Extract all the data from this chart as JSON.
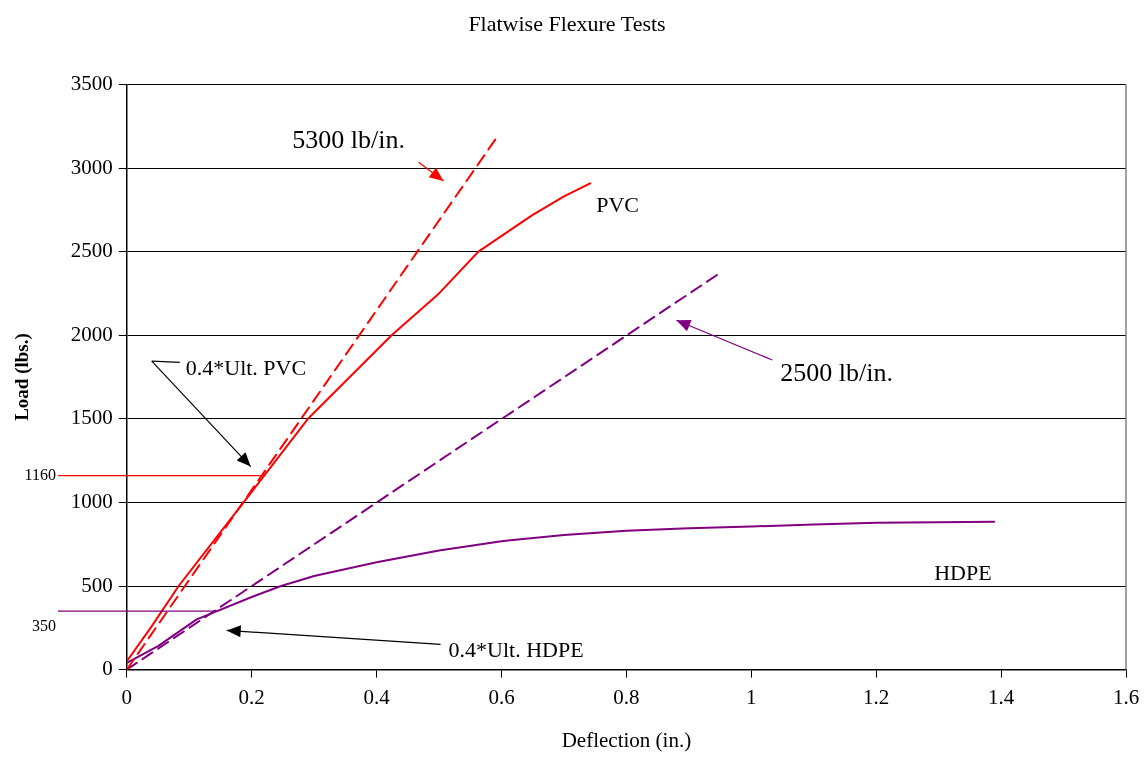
{
  "chart_data": {
    "type": "line",
    "title": "Flatwise Flexure Tests",
    "xlabel": "Deflection (in.)",
    "ylabel": "Load (lbs.)",
    "xlim": [
      0,
      1.6
    ],
    "xticks": [
      0,
      0.2,
      0.4,
      0.6,
      0.8,
      1,
      1.2,
      1.4,
      1.6
    ],
    "ylim": [
      0,
      3500
    ],
    "yticks": [
      0,
      500,
      1000,
      1500,
      2000,
      2500,
      3000,
      3500
    ],
    "grid": "y",
    "legend": false,
    "marker": "none",
    "series": [
      {
        "name": "PVC",
        "color": "#ff0000",
        "line_style": "solid",
        "x": [
          0,
          0.04,
          0.083,
          0.187,
          0.29,
          0.424,
          0.5,
          0.563,
          0.65,
          0.7,
          0.742
        ],
        "values": [
          50,
          260,
          500,
          1000,
          1500,
          2000,
          2250,
          2500,
          2720,
          2830,
          2908
        ]
      },
      {
        "color": "#ff0000",
        "line_style": "dashed",
        "x": [
          0,
          0.59
        ],
        "values": [
          0,
          3170
        ]
      },
      {
        "name": "HDPE",
        "color": "#800080",
        "line_style": "solid",
        "x": [
          0,
          0.05,
          0.112,
          0.2,
          0.247,
          0.3,
          0.4,
          0.5,
          0.6,
          0.7,
          0.8,
          0.9,
          1.0,
          1.1,
          1.2,
          1.3,
          1.389
        ],
        "values": [
          40,
          140,
          300,
          434,
          500,
          560,
          642,
          712,
          768,
          805,
          830,
          845,
          856,
          868,
          878,
          882,
          884
        ]
      },
      {
        "color": "#800080",
        "line_style": "dashed",
        "x": [
          0,
          0.945
        ],
        "values": [
          0,
          2360
        ]
      }
    ],
    "ref_lines": [
      {
        "axis": "y",
        "value": 1160,
        "label": "1160",
        "color": "#ff0000"
      },
      {
        "axis": "y",
        "value": 350,
        "label": "350",
        "color": "#800080"
      }
    ],
    "annotations": [
      "5300 lb/in.",
      "2500 lb/in.",
      "0.4*Ult. PVC",
      "0.4*Ult. HDPE"
    ]
  }
}
